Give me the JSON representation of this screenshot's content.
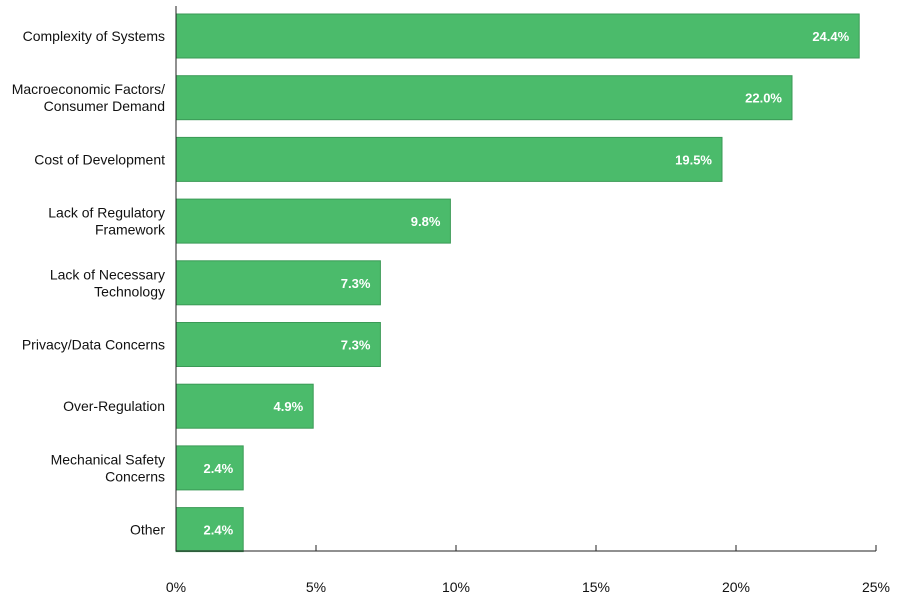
{
  "colors": {
    "bar_fill": "#4bbb6b",
    "bar_stroke": "#3a9a56",
    "axis": "#222222",
    "label_text": "#111111",
    "data_label_text": "#ffffff"
  },
  "chart_data": {
    "type": "bar",
    "orientation": "horizontal",
    "title": "",
    "xlabel": "",
    "ylabel": "",
    "categories": [
      [
        "Complexity of Systems"
      ],
      [
        "Macroeconomic Factors/",
        "Consumer Demand"
      ],
      [
        "Cost of Development"
      ],
      [
        "Lack of Regulatory",
        "Framework"
      ],
      [
        "Lack of Necessary",
        "Technology"
      ],
      [
        "Privacy/Data Concerns"
      ],
      [
        "Over-Regulation"
      ],
      [
        "Mechanical Safety",
        "Concerns"
      ],
      [
        "Other"
      ]
    ],
    "values": [
      24.4,
      22.0,
      19.5,
      9.8,
      7.3,
      7.3,
      4.9,
      2.4,
      2.4
    ],
    "data_labels": [
      "24.4%",
      "22.0%",
      "19.5%",
      "9.8%",
      "7.3%",
      "7.3%",
      "4.9%",
      "2.4%",
      "2.4%"
    ],
    "xlim": [
      0,
      25
    ],
    "xticks": [
      0,
      5,
      10,
      15,
      20,
      25
    ],
    "xtick_labels": [
      "0%",
      "5%",
      "10%",
      "15%",
      "20%",
      "25%"
    ],
    "grid": false,
    "legend": "none"
  }
}
